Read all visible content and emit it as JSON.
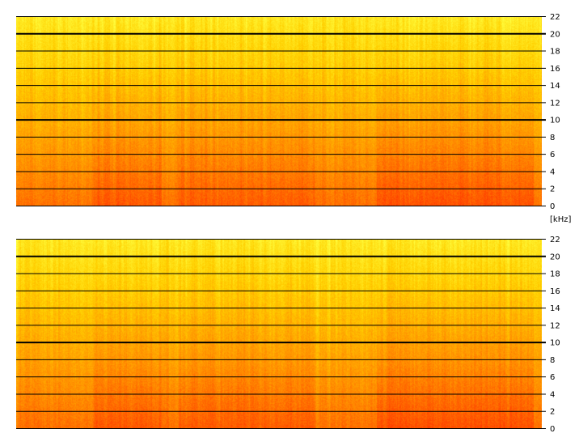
{
  "chart_data": [
    {
      "type": "heatmap",
      "title": "",
      "xlabel": "",
      "ylabel": "[kHz]",
      "ylim": [
        0,
        22
      ],
      "yticks": [
        0,
        2,
        4,
        6,
        8,
        10,
        12,
        14,
        16,
        18,
        20,
        22
      ],
      "ytick_labels": [
        "0",
        "2",
        "4",
        "6",
        "8",
        "10",
        "12",
        "14",
        "16",
        "18",
        "20",
        "22"
      ],
      "major_lines": [
        10,
        20
      ],
      "grid": true,
      "colormap": [
        "#ff3c00",
        "#ff8c00",
        "#ffd000",
        "#ffff40"
      ]
    },
    {
      "type": "heatmap",
      "title": "",
      "xlabel": "",
      "ylabel": "[kHz]",
      "ylim": [
        0,
        22
      ],
      "yticks": [
        0,
        2,
        4,
        6,
        8,
        10,
        12,
        14,
        16,
        18,
        20,
        22
      ],
      "ytick_labels": [
        "0",
        "2",
        "4",
        "6",
        "8",
        "10",
        "12",
        "14",
        "16",
        "18",
        "20",
        "22"
      ],
      "major_lines": [
        10,
        20
      ],
      "grid": true,
      "colormap": [
        "#ff3c00",
        "#ff8c00",
        "#ffd000",
        "#ffff40"
      ]
    }
  ],
  "unit_label": "[kHz]"
}
